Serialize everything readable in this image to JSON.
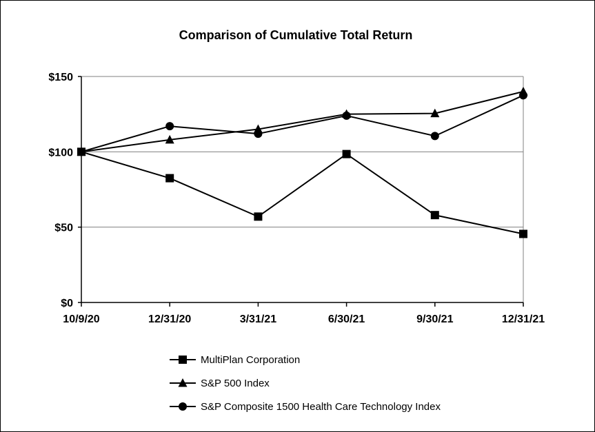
{
  "chart_data": {
    "type": "line",
    "title": "Comparison of Cumulative Total Return",
    "categories": [
      "10/9/20",
      "12/31/20",
      "3/31/21",
      "6/30/21",
      "9/30/21",
      "12/31/21"
    ],
    "y_tick_labels": [
      "$0",
      "$50",
      "$100",
      "$150"
    ],
    "y_ticks": [
      0,
      50,
      100,
      150
    ],
    "ylim": [
      0,
      150
    ],
    "grid": true,
    "legend_position": "bottom",
    "series": [
      {
        "name": "MultiPlan Corporation",
        "marker": "square",
        "values": [
          100,
          82.5,
          57,
          98.5,
          58,
          45.5
        ]
      },
      {
        "name": "S&P 500 Index",
        "marker": "triangle",
        "values": [
          100,
          108,
          115,
          125,
          125.5,
          140
        ]
      },
      {
        "name": "S&P Composite 1500 Health Care Technology Index",
        "marker": "circle",
        "values": [
          100,
          117,
          112,
          124,
          110.5,
          137.5
        ]
      }
    ]
  }
}
